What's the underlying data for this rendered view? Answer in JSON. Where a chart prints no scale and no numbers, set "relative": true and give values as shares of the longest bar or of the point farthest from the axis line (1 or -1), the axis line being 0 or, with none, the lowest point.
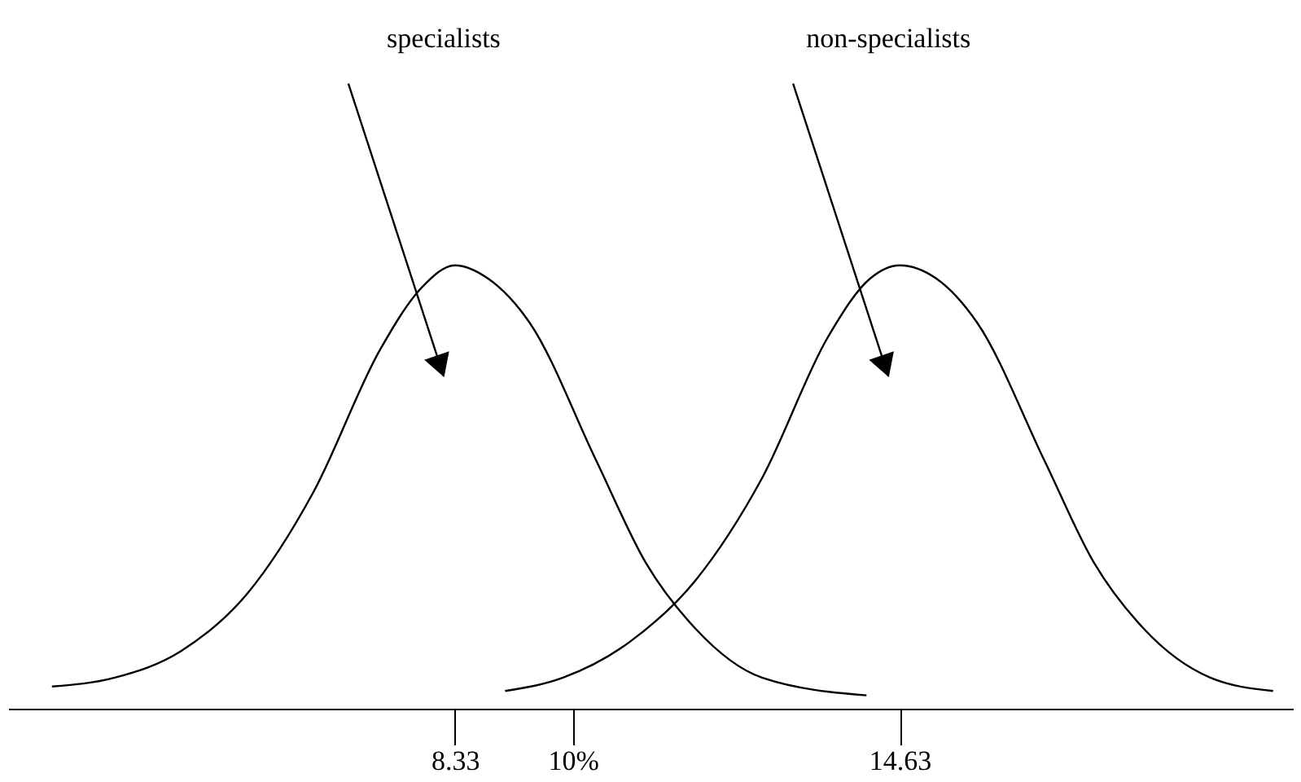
{
  "chart_data": {
    "type": "line",
    "relative": true,
    "xlim": [
      2.0,
      20.2
    ],
    "xticks": [
      8.33,
      {
        "value": 10,
        "label": "10%"
      },
      14.63
    ],
    "tick_labels": "x",
    "grid": false,
    "legend": false,
    "marker": "none",
    "line_style": "solid",
    "annotations": [
      "specialists",
      "non-specialists"
    ],
    "series": [
      {
        "color": "#000000",
        "x": [
          2.62,
          3.51,
          4.45,
          5.39,
          6.33,
          7.27,
          7.86,
          8.33,
          8.8,
          9.39,
          10.33,
          11.03,
          11.74,
          12.68,
          14.16
        ],
        "values": [
          0.05,
          0.07,
          0.13,
          0.26,
          0.49,
          0.81,
          0.95,
          1,
          0.97,
          0.87,
          0.56,
          0.33,
          0.18,
          0.07,
          0.03
        ]
      },
      {
        "color": "#000000",
        "x": [
          9.04,
          9.86,
          10.8,
          11.74,
          12.68,
          13.62,
          14.21,
          14.63,
          15.15,
          15.73,
          16.68,
          17.38,
          18.09,
          19.03,
          19.92
        ],
        "values": [
          0.04,
          0.07,
          0.15,
          0.29,
          0.52,
          0.84,
          0.97,
          1,
          0.97,
          0.87,
          0.56,
          0.33,
          0.18,
          0.07,
          0.04
        ]
      }
    ]
  }
}
